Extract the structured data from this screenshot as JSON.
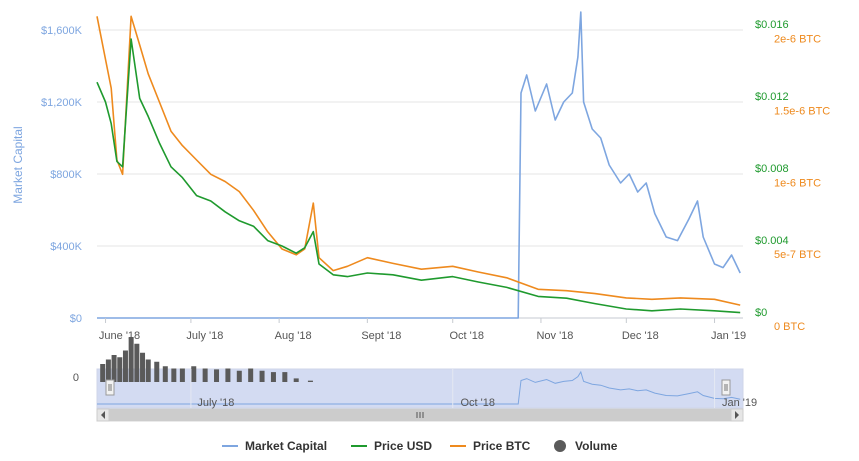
{
  "colors": {
    "market_cap": "#7ea6e0",
    "price_usd": "#1f9a2e",
    "price_btc": "#ee8a1e",
    "volume": "#5a5a5a",
    "navigator_fill": "#d3dbf2",
    "grid": "#e6e6e6"
  },
  "chart_data": {
    "type": "line",
    "x_range": [
      "2018-05-29",
      "2019-01-11"
    ],
    "x_ticks": [
      {
        "label": "June '18",
        "date": "2018-06-01"
      },
      {
        "label": "July '18",
        "date": "2018-07-01"
      },
      {
        "label": "Aug '18",
        "date": "2018-08-01"
      },
      {
        "label": "Sept '18",
        "date": "2018-09-01"
      },
      {
        "label": "Oct '18",
        "date": "2018-10-01"
      },
      {
        "label": "Nov '18",
        "date": "2018-11-01"
      },
      {
        "label": "Dec '18",
        "date": "2018-12-01"
      },
      {
        "label": "Jan '19",
        "date": "2019-01-01"
      }
    ],
    "y_axes": {
      "left": {
        "label": "Market Capital",
        "ylim": [
          0,
          1700000
        ],
        "ticks": [
          {
            "v": 0,
            "label": "$0"
          },
          {
            "v": 400000,
            "label": "$400K"
          },
          {
            "v": 800000,
            "label": "$800K"
          },
          {
            "v": 1200000,
            "label": "$1,200K"
          },
          {
            "v": 1600000,
            "label": "$1,600K"
          }
        ]
      },
      "right_usd": {
        "label": "",
        "ylim": [
          0,
          0.017
        ],
        "ticks": [
          {
            "v": 0,
            "label": "$0"
          },
          {
            "v": 0.004,
            "label": "$0.004"
          },
          {
            "v": 0.008,
            "label": "$0.008"
          },
          {
            "v": 0.012,
            "label": "$0.012"
          },
          {
            "v": 0.016,
            "label": "$0.016"
          }
        ]
      },
      "right_btc": {
        "label": "",
        "ylim": [
          0,
          2.13e-06
        ],
        "ticks": [
          {
            "v": 0,
            "label": "0 BTC"
          },
          {
            "v": 5e-07,
            "label": "5e-7 BTC"
          },
          {
            "v": 1e-06,
            "label": "1e-6 BTC"
          },
          {
            "v": 1.5e-06,
            "label": "1.5e-6 BTC"
          },
          {
            "v": 2e-06,
            "label": "2e-6 BTC"
          }
        ]
      }
    },
    "series": [
      {
        "name": "Market Capital",
        "axis": "left",
        "points": [
          [
            "2018-05-29",
            0
          ],
          [
            "2018-10-24",
            0
          ],
          [
            "2018-10-25",
            1250000
          ],
          [
            "2018-10-27",
            1350000
          ],
          [
            "2018-10-30",
            1150000
          ],
          [
            "2018-11-03",
            1300000
          ],
          [
            "2018-11-06",
            1100000
          ],
          [
            "2018-11-09",
            1200000
          ],
          [
            "2018-11-12",
            1250000
          ],
          [
            "2018-11-14",
            1450000
          ],
          [
            "2018-11-15",
            1700000
          ],
          [
            "2018-11-16",
            1200000
          ],
          [
            "2018-11-19",
            1050000
          ],
          [
            "2018-11-22",
            1000000
          ],
          [
            "2018-11-25",
            850000
          ],
          [
            "2018-11-29",
            750000
          ],
          [
            "2018-12-02",
            800000
          ],
          [
            "2018-12-05",
            700000
          ],
          [
            "2018-12-08",
            750000
          ],
          [
            "2018-12-11",
            580000
          ],
          [
            "2018-12-15",
            450000
          ],
          [
            "2018-12-19",
            430000
          ],
          [
            "2018-12-23",
            550000
          ],
          [
            "2018-12-26",
            650000
          ],
          [
            "2018-12-28",
            450000
          ],
          [
            "2019-01-01",
            300000
          ],
          [
            "2019-01-04",
            280000
          ],
          [
            "2019-01-07",
            350000
          ],
          [
            "2019-01-10",
            250000
          ]
        ]
      },
      {
        "name": "Price USD",
        "axis": "right_usd",
        "points": [
          [
            "2018-05-29",
            0.0131
          ],
          [
            "2018-06-01",
            0.012
          ],
          [
            "2018-06-03",
            0.0108
          ],
          [
            "2018-06-05",
            0.0087
          ],
          [
            "2018-06-07",
            0.0084
          ],
          [
            "2018-06-10",
            0.0155
          ],
          [
            "2018-06-13",
            0.0122
          ],
          [
            "2018-06-16",
            0.0112
          ],
          [
            "2018-06-20",
            0.0097
          ],
          [
            "2018-06-24",
            0.0084
          ],
          [
            "2018-06-28",
            0.0078
          ],
          [
            "2018-07-03",
            0.0068
          ],
          [
            "2018-07-08",
            0.0065
          ],
          [
            "2018-07-13",
            0.0059
          ],
          [
            "2018-07-18",
            0.0054
          ],
          [
            "2018-07-23",
            0.0051
          ],
          [
            "2018-07-28",
            0.0043
          ],
          [
            "2018-08-02",
            0.004
          ],
          [
            "2018-08-07",
            0.0036
          ],
          [
            "2018-08-10",
            0.0039
          ],
          [
            "2018-08-13",
            0.0048
          ],
          [
            "2018-08-15",
            0.003
          ],
          [
            "2018-08-20",
            0.0024
          ],
          [
            "2018-08-25",
            0.0023
          ],
          [
            "2018-09-01",
            0.0025
          ],
          [
            "2018-09-10",
            0.0024
          ],
          [
            "2018-09-20",
            0.0021
          ],
          [
            "2018-10-01",
            0.0023
          ],
          [
            "2018-10-10",
            0.002
          ],
          [
            "2018-10-20",
            0.0017
          ],
          [
            "2018-10-31",
            0.0012
          ],
          [
            "2018-11-10",
            0.0011
          ],
          [
            "2018-11-20",
            0.0008
          ],
          [
            "2018-12-01",
            0.0005
          ],
          [
            "2018-12-10",
            0.0004
          ],
          [
            "2018-12-20",
            0.0005
          ],
          [
            "2019-01-01",
            0.0004
          ],
          [
            "2019-01-10",
            0.0003
          ]
        ]
      },
      {
        "name": "Price BTC",
        "axis": "right_btc",
        "points": [
          [
            "2018-05-29",
            2.1e-06
          ],
          [
            "2018-06-01",
            1.8e-06
          ],
          [
            "2018-06-03",
            1.6e-06
          ],
          [
            "2018-06-05",
            1.1e-06
          ],
          [
            "2018-06-07",
            1e-06
          ],
          [
            "2018-06-10",
            2.1e-06
          ],
          [
            "2018-06-13",
            1.9e-06
          ],
          [
            "2018-06-16",
            1.7e-06
          ],
          [
            "2018-06-20",
            1.5e-06
          ],
          [
            "2018-06-24",
            1.3e-06
          ],
          [
            "2018-06-28",
            1.2e-06
          ],
          [
            "2018-07-03",
            1.1e-06
          ],
          [
            "2018-07-08",
            1e-06
          ],
          [
            "2018-07-13",
            9.5e-07
          ],
          [
            "2018-07-18",
            8.8e-07
          ],
          [
            "2018-07-23",
            7.5e-07
          ],
          [
            "2018-07-28",
            6e-07
          ],
          [
            "2018-08-02",
            4.8e-07
          ],
          [
            "2018-08-07",
            4.4e-07
          ],
          [
            "2018-08-10",
            4.8e-07
          ],
          [
            "2018-08-13",
            8e-07
          ],
          [
            "2018-08-15",
            4.2e-07
          ],
          [
            "2018-08-20",
            3.3e-07
          ],
          [
            "2018-08-25",
            3.6e-07
          ],
          [
            "2018-09-01",
            4.2e-07
          ],
          [
            "2018-09-10",
            3.8e-07
          ],
          [
            "2018-09-20",
            3.4e-07
          ],
          [
            "2018-10-01",
            3.6e-07
          ],
          [
            "2018-10-10",
            3.2e-07
          ],
          [
            "2018-10-20",
            2.8e-07
          ],
          [
            "2018-10-31",
            2e-07
          ],
          [
            "2018-11-10",
            1.9e-07
          ],
          [
            "2018-11-20",
            1.7e-07
          ],
          [
            "2018-12-01",
            1.4e-07
          ],
          [
            "2018-12-10",
            1.3e-07
          ],
          [
            "2018-12-20",
            1.4e-07
          ],
          [
            "2019-01-01",
            1.3e-07
          ],
          [
            "2019-01-10",
            9e-08
          ]
        ]
      }
    ],
    "volume": {
      "axis_tick": "0",
      "points": [
        [
          "2018-05-31",
          0.4
        ],
        [
          "2018-06-02",
          0.5
        ],
        [
          "2018-06-04",
          0.6
        ],
        [
          "2018-06-06",
          0.55
        ],
        [
          "2018-06-08",
          0.7
        ],
        [
          "2018-06-10",
          1.0
        ],
        [
          "2018-06-12",
          0.85
        ],
        [
          "2018-06-14",
          0.65
        ],
        [
          "2018-06-16",
          0.5
        ],
        [
          "2018-06-19",
          0.45
        ],
        [
          "2018-06-22",
          0.35
        ],
        [
          "2018-06-25",
          0.3
        ],
        [
          "2018-06-28",
          0.3
        ],
        [
          "2018-07-02",
          0.35
        ],
        [
          "2018-07-06",
          0.3
        ],
        [
          "2018-07-10",
          0.28
        ],
        [
          "2018-07-14",
          0.3
        ],
        [
          "2018-07-18",
          0.25
        ],
        [
          "2018-07-22",
          0.3
        ],
        [
          "2018-07-26",
          0.25
        ],
        [
          "2018-07-30",
          0.22
        ],
        [
          "2018-08-03",
          0.22
        ],
        [
          "2018-08-07",
          0.08
        ],
        [
          "2018-08-12",
          0.03
        ]
      ]
    },
    "navigator": {
      "x_ticks": [
        "July '18",
        "Oct '18",
        "Jan '19"
      ],
      "selection": [
        "2018-05-29",
        "2019-01-11"
      ]
    },
    "legend": {
      "placement": "bottom",
      "items": [
        {
          "label": "Market Capital",
          "color_key": "market_cap",
          "symbol": "line"
        },
        {
          "label": "Price USD",
          "color_key": "price_usd",
          "symbol": "line"
        },
        {
          "label": "Price BTC",
          "color_key": "price_btc",
          "symbol": "line"
        },
        {
          "label": "Volume",
          "color_key": "volume",
          "symbol": "circle"
        }
      ]
    },
    "grid": true
  }
}
